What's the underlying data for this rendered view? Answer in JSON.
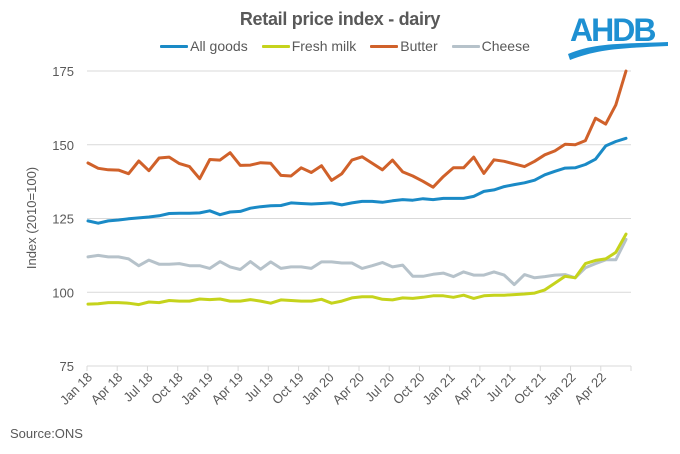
{
  "header": {
    "title": "Retail price index - dairy",
    "logo_text": "AHDB",
    "logo_color": "#1e90d2"
  },
  "footer": {
    "source": "Source:ONS"
  },
  "chart_data": {
    "type": "line",
    "title": "Retail price index - dairy",
    "xlabel": "",
    "ylabel": "Index (2010=100)",
    "ylim": [
      75,
      175
    ],
    "yticks": [
      "75",
      "100",
      "125",
      "150",
      "175"
    ],
    "grid": true,
    "legend_position": "top-center",
    "x_start": "Jan 18",
    "x_end": "Jun 22",
    "x_tick_labels": [
      "Jan 18",
      "Apr 18",
      "Jul 18",
      "Oct 18",
      "Jan 19",
      "Apr 19",
      "Jul 19",
      "Oct 19",
      "Jan 20",
      "Apr 20",
      "Jul 20",
      "Oct 20",
      "Jan 21",
      "Apr 21",
      "Jul 21",
      "Oct 21",
      "Jan 22",
      "Apr 22"
    ],
    "series": [
      {
        "name": "All goods",
        "color": "#1a8ac6",
        "values": [
          124.2,
          123.4,
          124.2,
          124.5,
          124.9,
          125.2,
          125.5,
          125.9,
          126.7,
          126.8,
          126.8,
          126.9,
          127.6,
          126.3,
          127.2,
          127.4,
          128.5,
          129.0,
          129.3,
          129.4,
          130.3,
          130.1,
          129.9,
          130.1,
          130.3,
          129.6,
          130.3,
          130.8,
          130.8,
          130.5,
          131.0,
          131.4,
          131.2,
          131.7,
          131.4,
          131.8,
          131.8,
          131.8,
          132.5,
          134.2,
          134.7,
          135.8,
          136.5,
          137.1,
          138.0,
          139.8,
          141.0,
          142.1,
          142.2,
          143.3,
          145.1,
          149.6,
          151.1,
          152.2
        ]
      },
      {
        "name": "Fresh milk",
        "color": "#c5d31c",
        "values": [
          96.0,
          96.1,
          96.5,
          96.5,
          96.3,
          95.8,
          96.7,
          96.5,
          97.2,
          97.0,
          97.0,
          97.7,
          97.5,
          97.7,
          97.0,
          97.0,
          97.5,
          97.0,
          96.3,
          97.4,
          97.2,
          97.0,
          97.0,
          97.6,
          96.3,
          97.0,
          98.1,
          98.5,
          98.5,
          97.6,
          97.4,
          98.1,
          97.9,
          98.3,
          98.8,
          98.8,
          98.3,
          99.0,
          97.9,
          98.8,
          99.0,
          99.0,
          99.2,
          99.4,
          99.7,
          100.8,
          103.1,
          105.4,
          104.9,
          109.7,
          110.8,
          111.3,
          113.5,
          119.7
        ]
      },
      {
        "name": "Butter",
        "color": "#d0612a",
        "values": [
          143.8,
          142.0,
          141.5,
          141.4,
          140.2,
          144.5,
          141.2,
          145.5,
          145.8,
          143.6,
          142.6,
          138.5,
          145.0,
          144.8,
          147.3,
          143.0,
          143.1,
          143.9,
          143.7,
          139.6,
          139.4,
          142.2,
          140.6,
          142.9,
          137.9,
          140.2,
          144.8,
          145.9,
          143.7,
          141.5,
          144.8,
          140.8,
          139.4,
          137.6,
          135.6,
          139.2,
          142.2,
          142.2,
          145.8,
          140.3,
          144.9,
          144.4,
          143.5,
          142.6,
          144.4,
          146.6,
          147.9,
          150.2,
          150.0,
          151.4,
          159.0,
          157.0,
          163.5,
          175.0
        ]
      },
      {
        "name": "Cheese",
        "color": "#b6c2ca",
        "values": [
          112.0,
          112.5,
          112.0,
          112.0,
          111.3,
          109.0,
          110.9,
          109.5,
          109.5,
          109.7,
          109.0,
          109.0,
          108.1,
          110.4,
          108.6,
          107.7,
          110.4,
          107.8,
          110.3,
          108.1,
          108.6,
          108.6,
          108.1,
          110.3,
          110.3,
          109.9,
          109.9,
          108.1,
          109.0,
          110.1,
          108.6,
          109.2,
          105.4,
          105.4,
          106.1,
          106.5,
          105.3,
          106.9,
          105.8,
          105.8,
          106.9,
          105.8,
          102.6,
          106.0,
          104.9,
          105.3,
          105.8,
          106.0,
          104.9,
          108.3,
          109.7,
          111.0,
          111.0,
          117.9
        ]
      }
    ]
  }
}
